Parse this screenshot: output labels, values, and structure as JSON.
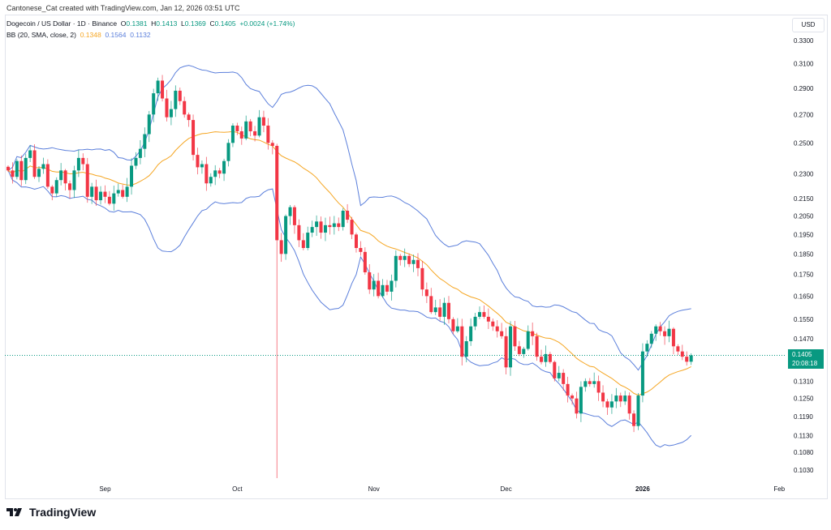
{
  "header": {
    "credit": "Cantonese_Cat created with TradingView.com, Jan 12, 2026 03:51 UTC"
  },
  "legend": {
    "symbol": "Dogecoin / US Dollar · 1D · Binance",
    "o_label": "O",
    "o": "0.1381",
    "h_label": "H",
    "h": "0.1413",
    "l_label": "L",
    "l": "0.1369",
    "c_label": "C",
    "c": "0.1405",
    "change": "+0.0024 (+1.74%)",
    "bb_label": "BB (20, SMA, close, 2)",
    "bb_basis": "0.1348",
    "bb_upper": "0.1564",
    "bb_lower": "0.1132"
  },
  "currency": "USD",
  "last_price": {
    "value": "0.1405",
    "countdown": "20:08:18"
  },
  "brand": "TradingView",
  "colors": {
    "up": "#089981",
    "down": "#f23645",
    "bb_basis": "#f5a623",
    "bb_bands": "#5b7fdb"
  },
  "chart_data": {
    "type": "candlestick",
    "scale": "log",
    "start_date": "2025-08-10",
    "interval": "1D",
    "y_ticks": [
      "0.3300",
      "0.3100",
      "0.2900",
      "0.2700",
      "0.2500",
      "0.2300",
      "0.2150",
      "0.2050",
      "0.1950",
      "0.1850",
      "0.1750",
      "0.1650",
      "0.1550",
      "0.1470",
      "0.1310",
      "0.1250",
      "0.1190",
      "0.1130",
      "0.1080",
      "0.1030"
    ],
    "x_ticks": [
      {
        "label": "Sep",
        "index": 22
      },
      {
        "label": "Oct",
        "index": 52
      },
      {
        "label": "Nov",
        "index": 83
      },
      {
        "label": "Dec",
        "index": 113
      },
      {
        "label": "2026",
        "index": 144,
        "bold": true
      },
      {
        "label": "Feb",
        "index": 175
      }
    ],
    "closes": [
      0.232,
      0.228,
      0.238,
      0.226,
      0.24,
      0.245,
      0.228,
      0.233,
      0.236,
      0.222,
      0.218,
      0.226,
      0.232,
      0.224,
      0.22,
      0.232,
      0.24,
      0.236,
      0.216,
      0.222,
      0.214,
      0.219,
      0.216,
      0.212,
      0.218,
      0.22,
      0.216,
      0.222,
      0.235,
      0.24,
      0.246,
      0.256,
      0.27,
      0.286,
      0.296,
      0.282,
      0.268,
      0.274,
      0.288,
      0.28,
      0.27,
      0.266,
      0.242,
      0.234,
      0.236,
      0.224,
      0.228,
      0.232,
      0.23,
      0.238,
      0.25,
      0.262,
      0.258,
      0.253,
      0.265,
      0.258,
      0.255,
      0.268,
      0.262,
      0.25,
      0.248,
      0.192,
      0.185,
      0.205,
      0.21,
      0.2,
      0.192,
      0.188,
      0.196,
      0.199,
      0.202,
      0.196,
      0.2,
      0.199,
      0.201,
      0.199,
      0.208,
      0.203,
      0.195,
      0.188,
      0.186,
      0.176,
      0.168,
      0.172,
      0.165,
      0.17,
      0.167,
      0.172,
      0.184,
      0.182,
      0.184,
      0.18,
      0.182,
      0.178,
      0.168,
      0.165,
      0.158,
      0.16,
      0.156,
      0.162,
      0.155,
      0.15,
      0.152,
      0.14,
      0.146,
      0.152,
      0.156,
      0.158,
      0.156,
      0.154,
      0.152,
      0.15,
      0.148,
      0.136,
      0.152,
      0.144,
      0.141,
      0.143,
      0.15,
      0.148,
      0.14,
      0.138,
      0.141,
      0.138,
      0.132,
      0.134,
      0.13,
      0.126,
      0.125,
      0.12,
      0.129,
      0.131,
      0.13,
      0.131,
      0.127,
      0.124,
      0.122,
      0.124,
      0.126,
      0.124,
      0.126,
      0.12,
      0.116,
      0.126,
      0.142,
      0.145,
      0.149,
      0.152,
      0.15,
      0.148,
      0.151,
      0.144,
      0.142,
      0.14,
      0.1381,
      0.1405
    ],
    "notable_lows": [
      {
        "index": 61,
        "low": 0.1007
      }
    ],
    "last_candle": {
      "open": 0.1381,
      "high": 0.1413,
      "low": 0.1369,
      "close": 0.1405
    },
    "bollinger": {
      "period": 20,
      "stddev": 2,
      "source": "close",
      "basis": 0.1348,
      "upper": 0.1564,
      "lower": 0.1132
    }
  }
}
